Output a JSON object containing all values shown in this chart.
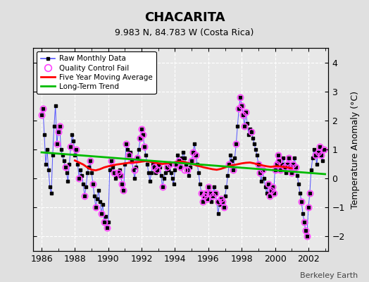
{
  "title": "CHACARITA",
  "subtitle": "9.983 N, 84.783 W (Costa Rica)",
  "ylabel": "Temperature Anomaly (°C)",
  "credit": "Berkeley Earth",
  "xlim": [
    1985.5,
    2003.2
  ],
  "ylim": [
    -2.5,
    4.5
  ],
  "yticks": [
    -2,
    -1,
    0,
    1,
    2,
    3,
    4
  ],
  "xticks": [
    1986,
    1988,
    1990,
    1992,
    1994,
    1996,
    1998,
    2000,
    2002
  ],
  "fig_bg_color": "#e0e0e0",
  "plot_bg_color": "#e8e8e8",
  "raw_color": "#5555ff",
  "raw_marker_color": "#000000",
  "qc_color": "#ff44ff",
  "ma_color": "#ff0000",
  "trend_color": "#00bb00",
  "raw_x": [
    1986.0,
    1986.083,
    1986.167,
    1986.25,
    1986.333,
    1986.417,
    1986.5,
    1986.583,
    1986.667,
    1986.75,
    1986.833,
    1986.917,
    1987.0,
    1987.083,
    1987.167,
    1987.25,
    1987.333,
    1987.417,
    1987.5,
    1987.583,
    1987.667,
    1987.75,
    1987.833,
    1987.917,
    1988.0,
    1988.083,
    1988.167,
    1988.25,
    1988.333,
    1988.417,
    1988.5,
    1988.583,
    1988.667,
    1988.75,
    1988.833,
    1988.917,
    1989.0,
    1989.083,
    1989.167,
    1989.25,
    1989.333,
    1989.417,
    1989.5,
    1989.583,
    1989.667,
    1989.75,
    1989.833,
    1989.917,
    1990.0,
    1990.083,
    1990.167,
    1990.25,
    1990.333,
    1990.417,
    1990.5,
    1990.583,
    1990.667,
    1990.75,
    1990.833,
    1990.917,
    1991.0,
    1991.083,
    1991.167,
    1991.25,
    1991.333,
    1991.417,
    1991.5,
    1991.583,
    1991.667,
    1991.75,
    1991.833,
    1991.917,
    1992.0,
    1992.083,
    1992.167,
    1992.25,
    1992.333,
    1992.417,
    1992.5,
    1992.583,
    1992.667,
    1992.75,
    1992.833,
    1992.917,
    1993.0,
    1993.083,
    1993.167,
    1993.25,
    1993.333,
    1993.417,
    1993.5,
    1993.583,
    1993.667,
    1993.75,
    1993.833,
    1993.917,
    1994.0,
    1994.083,
    1994.167,
    1994.25,
    1994.333,
    1994.417,
    1994.5,
    1994.583,
    1994.667,
    1994.75,
    1994.833,
    1994.917,
    1995.0,
    1995.083,
    1995.167,
    1995.25,
    1995.333,
    1995.417,
    1995.5,
    1995.583,
    1995.667,
    1995.75,
    1995.833,
    1995.917,
    1996.0,
    1996.083,
    1996.167,
    1996.25,
    1996.333,
    1996.417,
    1996.5,
    1996.583,
    1996.667,
    1996.75,
    1996.833,
    1996.917,
    1997.0,
    1997.083,
    1997.167,
    1997.25,
    1997.333,
    1997.417,
    1997.5,
    1997.583,
    1997.667,
    1997.75,
    1997.833,
    1997.917,
    1998.0,
    1998.083,
    1998.167,
    1998.25,
    1998.333,
    1998.417,
    1998.5,
    1998.583,
    1998.667,
    1998.75,
    1998.833,
    1998.917,
    1999.0,
    1999.083,
    1999.167,
    1999.25,
    1999.333,
    1999.417,
    1999.5,
    1999.583,
    1999.667,
    1999.75,
    1999.833,
    1999.917,
    2000.0,
    2000.083,
    2000.167,
    2000.25,
    2000.333,
    2000.417,
    2000.5,
    2000.583,
    2000.667,
    2000.75,
    2000.833,
    2000.917,
    2001.0,
    2001.083,
    2001.167,
    2001.25,
    2001.333,
    2001.417,
    2001.5,
    2001.583,
    2001.667,
    2001.75,
    2001.833,
    2001.917,
    2002.0,
    2002.083,
    2002.167,
    2002.25,
    2002.333,
    2002.417,
    2002.5,
    2002.583,
    2002.667,
    2002.75,
    2002.833,
    2002.917
  ],
  "raw_y": [
    2.2,
    2.4,
    1.5,
    0.5,
    1.0,
    0.3,
    -0.3,
    -0.5,
    0.8,
    1.8,
    2.5,
    1.2,
    1.6,
    1.8,
    1.0,
    0.8,
    0.6,
    0.4,
    0.2,
    -0.1,
    0.5,
    1.1,
    1.5,
    1.3,
    0.8,
    1.0,
    0.5,
    0.0,
    0.3,
    0.1,
    -0.2,
    -0.6,
    -0.3,
    0.2,
    0.4,
    0.6,
    0.2,
    -0.2,
    -0.6,
    -1.0,
    -0.7,
    -0.4,
    -0.8,
    -1.2,
    -0.9,
    -1.5,
    -1.3,
    -1.7,
    -1.5,
    0.3,
    0.6,
    0.4,
    0.2,
    0.0,
    0.1,
    0.2,
    0.3,
    0.1,
    -0.2,
    -0.4,
    0.5,
    1.2,
    1.0,
    0.8,
    0.9,
    0.6,
    0.3,
    0.0,
    0.4,
    0.7,
    1.0,
    1.4,
    1.7,
    1.5,
    1.1,
    0.8,
    0.5,
    0.2,
    -0.1,
    0.2,
    0.5,
    0.4,
    0.2,
    0.3,
    0.5,
    0.4,
    0.1,
    -0.3,
    0.0,
    0.2,
    0.4,
    0.3,
    0.5,
    0.2,
    0.0,
    -0.2,
    0.3,
    0.5,
    0.8,
    0.6,
    0.4,
    0.7,
    0.9,
    0.7,
    0.5,
    0.3,
    0.1,
    0.4,
    0.6,
    0.9,
    1.2,
    0.8,
    0.5,
    0.2,
    -0.2,
    -0.5,
    -0.8,
    -0.6,
    -0.5,
    -0.7,
    -0.3,
    -0.5,
    -0.8,
    -0.6,
    -0.3,
    -0.5,
    -0.8,
    -1.2,
    -0.9,
    -0.7,
    -0.8,
    -1.0,
    -0.6,
    -0.3,
    0.1,
    0.5,
    0.8,
    0.6,
    0.3,
    0.7,
    1.2,
    1.8,
    2.4,
    2.8,
    2.5,
    2.2,
    1.8,
    2.3,
    1.9,
    1.5,
    1.7,
    1.6,
    1.4,
    1.2,
    1.0,
    0.8,
    0.5,
    0.2,
    -0.1,
    0.3,
    0.0,
    -0.3,
    -0.5,
    -0.2,
    -0.6,
    -0.4,
    -0.3,
    -0.5,
    0.3,
    0.5,
    0.8,
    0.6,
    0.3,
    0.5,
    0.7,
    0.4,
    0.2,
    0.5,
    0.7,
    0.4,
    0.2,
    0.5,
    0.7,
    0.4,
    0.1,
    -0.2,
    -0.5,
    -0.8,
    -1.2,
    -1.5,
    -1.8,
    -2.0,
    -1.0,
    -0.5,
    0.3,
    0.7,
    1.0,
    0.8,
    0.5,
    0.9,
    1.1,
    0.8,
    0.6,
    1.0
  ],
  "qc_fail_x": [
    1986.0,
    1986.083,
    1986.917,
    1987.0,
    1987.083,
    1987.417,
    1987.75,
    1988.083,
    1988.25,
    1988.583,
    1988.917,
    1989.083,
    1989.25,
    1989.583,
    1989.75,
    1989.917,
    1990.167,
    1990.333,
    1990.583,
    1990.75,
    1990.833,
    1990.917,
    1991.083,
    1991.25,
    1991.417,
    1991.583,
    1991.75,
    1991.917,
    1992.0,
    1992.083,
    1992.167,
    1992.75,
    1992.917,
    1993.0,
    1993.25,
    1993.5,
    1993.667,
    1994.083,
    1994.25,
    1994.333,
    1994.583,
    1994.75,
    1995.0,
    1995.083,
    1995.25,
    1995.583,
    1995.667,
    1995.75,
    1995.833,
    1995.917,
    1996.0,
    1996.083,
    1996.25,
    1996.417,
    1996.583,
    1996.75,
    1996.833,
    1996.917,
    1997.25,
    1997.5,
    1997.667,
    1997.833,
    1997.917,
    1998.0,
    1998.083,
    1998.167,
    1998.25,
    1998.583,
    1999.0,
    1999.083,
    1999.25,
    1999.583,
    1999.667,
    1999.75,
    1999.833,
    1999.917,
    2000.0,
    2000.083,
    2000.167,
    2000.25,
    2000.333,
    2000.583,
    2000.75,
    2000.833,
    2000.917,
    2001.0,
    2001.083,
    2001.25,
    2001.583,
    2001.75,
    2001.833,
    2001.917,
    2002.0,
    2002.083,
    2002.417,
    2002.583,
    2002.667,
    2002.75,
    2002.917
  ],
  "qc_fail_y": [
    2.2,
    2.4,
    1.2,
    1.6,
    1.8,
    0.4,
    1.1,
    1.0,
    0.0,
    -0.6,
    0.6,
    -0.2,
    -1.0,
    -1.2,
    -1.5,
    -1.7,
    0.6,
    0.2,
    0.2,
    0.1,
    -0.2,
    -0.4,
    1.2,
    0.8,
    0.6,
    0.3,
    0.7,
    1.4,
    1.7,
    1.5,
    1.1,
    0.4,
    0.3,
    0.5,
    -0.3,
    0.4,
    0.5,
    0.5,
    0.6,
    0.4,
    0.3,
    0.3,
    0.6,
    0.9,
    0.8,
    -0.5,
    -0.8,
    -0.6,
    -0.5,
    -0.7,
    -0.3,
    -0.5,
    -0.6,
    -0.5,
    -0.8,
    -0.7,
    -0.8,
    -1.0,
    0.5,
    0.3,
    1.2,
    2.4,
    2.8,
    2.5,
    2.2,
    1.8,
    2.3,
    1.6,
    0.5,
    0.2,
    0.3,
    -0.2,
    -0.6,
    -0.4,
    -0.3,
    -0.5,
    0.3,
    0.5,
    0.8,
    0.6,
    0.3,
    0.4,
    0.5,
    0.7,
    0.4,
    0.2,
    0.5,
    0.4,
    -0.8,
    -1.5,
    -1.8,
    -2.0,
    -1.0,
    -0.5,
    0.8,
    0.9,
    1.1,
    0.8,
    1.0
  ],
  "ma_x": [
    1988.0,
    1988.25,
    1988.5,
    1988.75,
    1989.0,
    1989.25,
    1989.5,
    1989.75,
    1990.0,
    1990.25,
    1990.5,
    1990.75,
    1991.0,
    1991.25,
    1991.5,
    1991.75,
    1992.0,
    1992.25,
    1992.5,
    1992.75,
    1993.0,
    1993.25,
    1993.5,
    1993.75,
    1994.0,
    1994.25,
    1994.5,
    1994.75,
    1995.0,
    1995.25,
    1995.5,
    1995.75,
    1996.0,
    1996.25,
    1996.5,
    1996.75,
    1997.0,
    1997.25,
    1997.5,
    1997.75,
    1998.0,
    1998.25,
    1998.5,
    1998.75,
    1999.0,
    1999.25,
    1999.5,
    1999.75,
    2000.0,
    2000.25,
    2000.5,
    2000.75,
    2001.0
  ],
  "ma_y": [
    0.62,
    0.55,
    0.48,
    0.38,
    0.3,
    0.28,
    0.32,
    0.38,
    0.42,
    0.45,
    0.48,
    0.5,
    0.52,
    0.54,
    0.55,
    0.56,
    0.58,
    0.6,
    0.58,
    0.55,
    0.52,
    0.5,
    0.52,
    0.54,
    0.56,
    0.58,
    0.58,
    0.54,
    0.5,
    0.46,
    0.42,
    0.38,
    0.35,
    0.32,
    0.3,
    0.33,
    0.38,
    0.43,
    0.46,
    0.49,
    0.52,
    0.54,
    0.55,
    0.52,
    0.48,
    0.45,
    0.42,
    0.4,
    0.42,
    0.42,
    0.4,
    0.38,
    0.35
  ],
  "trend_x": [
    1986.0,
    2003.0
  ],
  "trend_y": [
    0.9,
    0.15
  ]
}
